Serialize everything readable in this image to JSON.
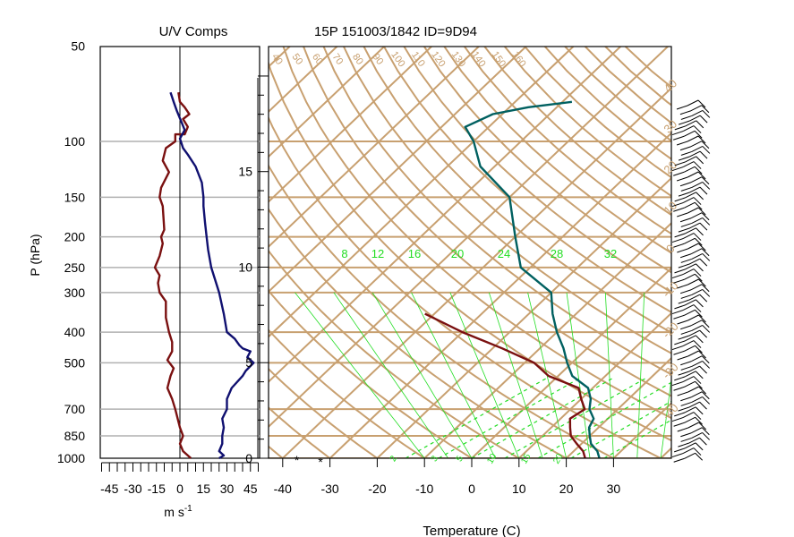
{
  "chart_data": [
    {
      "type": "line",
      "title": "U/V Comps",
      "xlabel": "m s",
      "xlabel_superscript": "-1",
      "ylabel": "P (hPa)",
      "y_scale": "log",
      "ylim": [
        1000,
        50
      ],
      "xlim": [
        -52,
        52
      ],
      "x_ticks": [
        "-45",
        "-30",
        "-15",
        "0",
        "15",
        "30",
        "45"
      ],
      "y_ticks": [
        "50",
        "100",
        "150",
        "200",
        "250",
        "300",
        "400",
        "500",
        "700",
        "850",
        "1000"
      ],
      "grid": "horizontal at labeled pressure levels",
      "series": [
        {
          "color": "#7a1010",
          "points": [
            [
              7,
              1000
            ],
            [
              5,
              980
            ],
            [
              2,
              950
            ],
            [
              0,
              900
            ],
            [
              2,
              850
            ],
            [
              0,
              800
            ],
            [
              -3,
              700
            ],
            [
              -5,
              650
            ],
            [
              -8,
              600
            ],
            [
              -6,
              550
            ],
            [
              -4,
              520
            ],
            [
              -8,
              490
            ],
            [
              -5,
              460
            ],
            [
              -5,
              430
            ],
            [
              -7,
              400
            ],
            [
              -9,
              360
            ],
            [
              -9,
              320
            ],
            [
              -13,
              300
            ],
            [
              -14,
              280
            ],
            [
              -13,
              265
            ],
            [
              -16,
              250
            ],
            [
              -13,
              230
            ],
            [
              -11,
              210
            ],
            [
              -12,
              200
            ],
            [
              -10,
              190
            ],
            [
              -11,
              160
            ],
            [
              -13,
              150
            ],
            [
              -12,
              140
            ],
            [
              -7,
              125
            ],
            [
              -11,
              115
            ],
            [
              -9,
              105
            ],
            [
              -3,
              100
            ],
            [
              -3,
              95
            ],
            [
              3,
              95
            ],
            [
              5,
              90
            ],
            [
              2,
              85
            ],
            [
              6,
              82
            ],
            [
              3,
              78
            ],
            [
              0,
              75
            ],
            [
              -1,
              70
            ]
          ]
        },
        {
          "color": "#101070",
          "points": [
            [
              25,
              1000
            ],
            [
              28,
              980
            ],
            [
              25,
              950
            ],
            [
              27,
              900
            ],
            [
              27,
              850
            ],
            [
              28,
              800
            ],
            [
              27,
              750
            ],
            [
              30,
              700
            ],
            [
              30,
              650
            ],
            [
              33,
              600
            ],
            [
              40,
              550
            ],
            [
              42,
              530
            ],
            [
              47,
              500
            ],
            [
              43,
              480
            ],
            [
              45,
              460
            ],
            [
              40,
              450
            ],
            [
              38,
              440
            ],
            [
              35,
              420
            ],
            [
              30,
              400
            ],
            [
              28,
              350
            ],
            [
              25,
              300
            ],
            [
              20,
              250
            ],
            [
              18,
              220
            ],
            [
              17,
              200
            ],
            [
              16,
              180
            ],
            [
              15,
              160
            ],
            [
              15,
              150
            ],
            [
              14,
              135
            ],
            [
              10,
              120
            ],
            [
              5,
              110
            ],
            [
              2,
              105
            ],
            [
              0,
              98
            ],
            [
              3,
              92
            ],
            [
              1,
              87
            ],
            [
              -2,
              80
            ],
            [
              -4,
              75
            ],
            [
              -6,
              70
            ]
          ]
        }
      ]
    },
    {
      "type": "line",
      "title": "15P 151003/1842 ID=9D94",
      "xlabel": "Temperature (C)",
      "y_scale": "log",
      "ylim": [
        1000,
        50
      ],
      "xlim": [
        -45,
        42
      ],
      "x_ticks": [
        "-40",
        "-30",
        "-20",
        "-10",
        "0",
        "10",
        "20",
        "30"
      ],
      "height_ticks_km": [
        "0",
        "5",
        "10",
        "15"
      ],
      "skew_temperature_lines": [
        "-40",
        "-30",
        "-20",
        "-10",
        "0",
        "10",
        "20",
        "30",
        "40"
      ],
      "dry_adiabats_K": [
        "40",
        "50",
        "60",
        "70",
        "80",
        "90",
        "100",
        "110",
        "120",
        "130",
        "140",
        "150",
        "160"
      ],
      "mixing_ratio_labels": [
        "8",
        "12",
        "16",
        "20",
        "24",
        "28",
        "32"
      ],
      "lower_mixing_ratio_labels": [
        "2",
        "3",
        "5",
        "10",
        "15",
        "20"
      ],
      "temperature": {
        "color": "#006060",
        "points": [
          [
            27,
            1000
          ],
          [
            25,
            950
          ],
          [
            22,
            900
          ],
          [
            20,
            850
          ],
          [
            18,
            800
          ],
          [
            17,
            750
          ],
          [
            14,
            700
          ],
          [
            12,
            650
          ],
          [
            9,
            600
          ],
          [
            3,
            550
          ],
          [
            -1,
            500
          ],
          [
            -5,
            450
          ],
          [
            -10,
            400
          ],
          [
            -15,
            350
          ],
          [
            -20,
            300
          ],
          [
            -32,
            250
          ],
          [
            -40,
            200
          ],
          [
            -50,
            150
          ],
          [
            -63,
            120
          ],
          [
            -70,
            100
          ],
          [
            -75,
            90
          ],
          [
            -72,
            82
          ],
          [
            -66,
            78
          ],
          [
            -58,
            75
          ]
        ]
      },
      "dewpoint": {
        "color": "#7a1010",
        "points": [
          [
            24,
            1000
          ],
          [
            22,
            950
          ],
          [
            19,
            900
          ],
          [
            16,
            850
          ],
          [
            14,
            800
          ],
          [
            12,
            750
          ],
          [
            13,
            700
          ],
          [
            10,
            650
          ],
          [
            7,
            600
          ],
          [
            -2,
            550
          ],
          [
            -8,
            500
          ],
          [
            -18,
            450
          ],
          [
            -30,
            400
          ],
          [
            -42,
            350
          ]
        ]
      },
      "markers": [
        {
          "symbol": "*",
          "temp": -37,
          "p": 995
        },
        {
          "symbol": "*",
          "temp": -32,
          "p": 1005
        }
      ],
      "wind_barbs_count": 70
    }
  ]
}
